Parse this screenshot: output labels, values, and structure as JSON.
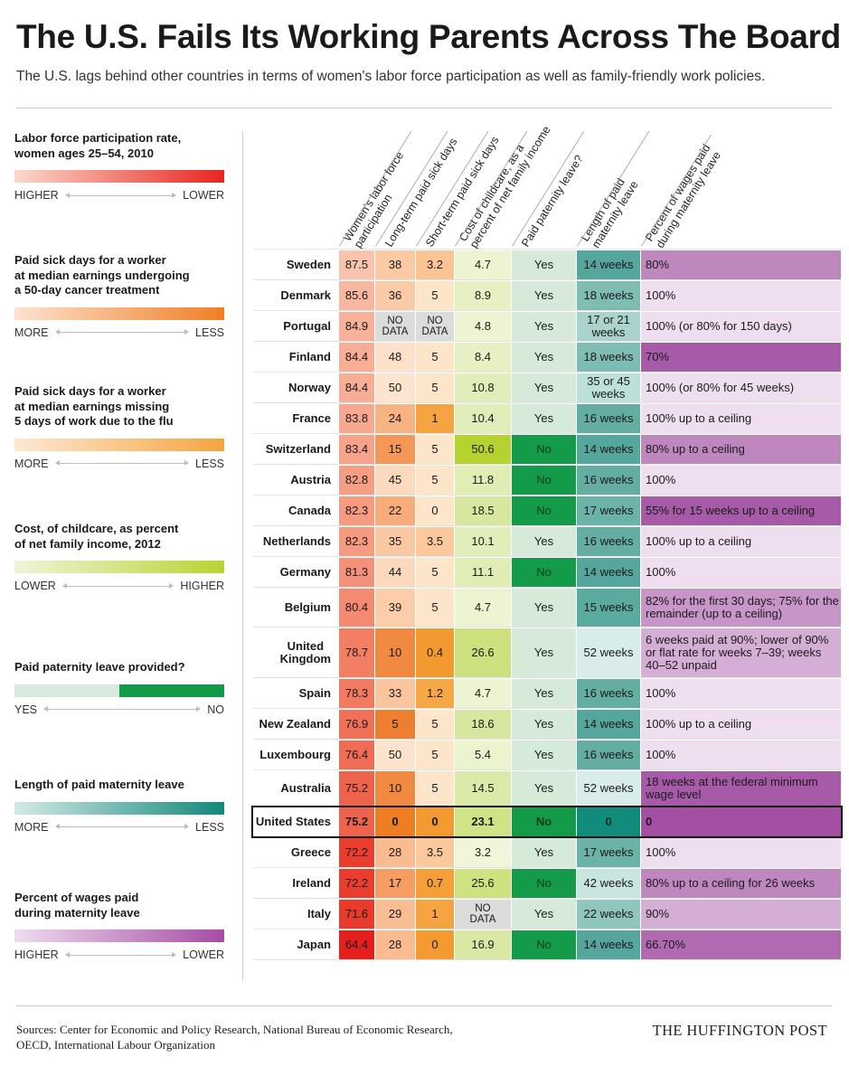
{
  "title": "The U.S. Fails Its Working Parents Across The Board",
  "subtitle": "The U.S. lags behind other countries in terms of women's labor force participation as well as family-friendly work policies.",
  "legends": [
    {
      "title": "Labor force participation rate,\nwomen ages 25–54, 2010",
      "left": "HIGHER",
      "right": "LOWER",
      "from": "#fbd9cc",
      "to": "#e8251f"
    },
    {
      "title": "Paid sick days for a worker\nat median earnings undergoing\na 50-day cancer treatment",
      "left": "MORE",
      "right": "LESS",
      "from": "#fde2cf",
      "to": "#f07f25"
    },
    {
      "title": "Paid sick days for a worker\nat median earnings missing\n5 days of work due to the flu",
      "left": "MORE",
      "right": "LESS",
      "from": "#fde9d3",
      "to": "#f4a540"
    },
    {
      "title": "Cost, of childcare, as percent\nof net family income, 2012",
      "left": "LOWER",
      "right": "HIGHER",
      "from": "#eef5d8",
      "to": "#b8d433"
    },
    {
      "title": "Paid paternity leave provided?",
      "left": "YES",
      "right": "NO",
      "from": "#d6ebdd",
      "to": "#119a48",
      "split": true
    },
    {
      "title": "Length of paid maternity leave",
      "left": "MORE",
      "right": "LESS",
      "from": "#d4e9e6",
      "to": "#11897b"
    },
    {
      "title": "Percent of wages paid\nduring maternity leave",
      "left": "HIGHER",
      "right": "LOWER",
      "from": "#eedcef",
      "to": "#a64ca5"
    }
  ],
  "chart_data": {
    "type": "table",
    "columns": [
      "Women's labor force participation",
      "Long-term paid sick days",
      "Short-term paid sick days",
      "Cost of childcare, as a percent of net family income",
      "Paid paternity leave?",
      "Length of paid maternity leave",
      "Percent of wages paid during maternity leave"
    ],
    "rows": [
      {
        "country": "Sweden",
        "lfp": "87.5",
        "lt": "38",
        "st": "3.2",
        "cc": "4.7",
        "pat": "Yes",
        "mat": "14 weeks",
        "wage": "80%",
        "colors": [
          "#f9c4ae",
          "#fbc9a3",
          "#fbc493",
          "#edf4d2",
          "#d5ead9",
          "#55a79d",
          "#be88bf"
        ]
      },
      {
        "country": "Denmark",
        "lfp": "85.6",
        "lt": "36",
        "st": "5",
        "cc": "8.9",
        "pat": "Yes",
        "mat": "18 weeks",
        "wage": "100%",
        "colors": [
          "#f8b7a0",
          "#fbcaa6",
          "#fce5c9",
          "#e6f0c3",
          "#d5ead9",
          "#7ebcb4",
          "#efdef0"
        ]
      },
      {
        "country": "Portugal",
        "lfp": "84.9",
        "lt": "NO DATA",
        "st": "NO DATA",
        "cc": "4.8",
        "pat": "Yes",
        "mat": "17 or 21 weeks",
        "wage": "100% (or 80% for 150 days)",
        "colors": [
          "#f8b29a",
          "#dcdcdc",
          "#dcdcdc",
          "#edf4d2",
          "#d5ead9",
          "#a9d3cc",
          "#efdef0"
        ]
      },
      {
        "country": "Finland",
        "lfp": "84.4",
        "lt": "48",
        "st": "5",
        "cc": "8.4",
        "pat": "Yes",
        "mat": "18 weeks",
        "wage": "70%",
        "colors": [
          "#f8ad95",
          "#fde1cb",
          "#fce5c9",
          "#e6f0c3",
          "#d5ead9",
          "#7ebcb4",
          "#a75aa8"
        ]
      },
      {
        "country": "Norway",
        "lfp": "84.4",
        "lt": "50",
        "st": "5",
        "cc": "10.8",
        "pat": "Yes",
        "mat": "35 or 45 weeks",
        "wage": "100% (or 80% for 45 weeks)",
        "colors": [
          "#f8ad95",
          "#fde4cf",
          "#fce5c9",
          "#e2eeba",
          "#d5ead9",
          "#bde0d9",
          "#efdef0"
        ]
      },
      {
        "country": "France",
        "lfp": "83.8",
        "lt": "24",
        "st": "1",
        "cc": "10.4",
        "pat": "Yes",
        "mat": "16 weeks",
        "wage": "100% up to a ceiling",
        "colors": [
          "#f7a88f",
          "#f8b383",
          "#f6a341",
          "#e2eeba",
          "#d5ead9",
          "#63ada3",
          "#efdef0"
        ]
      },
      {
        "country": "Switzerland",
        "lfp": "83.4",
        "lt": "15",
        "st": "5",
        "cc": "50.6",
        "pat": "No",
        "mat": "14 weeks",
        "wage": "80% up to a ceiling",
        "colors": [
          "#f7a38a",
          "#f49757",
          "#fce5c9",
          "#b6d22e",
          "#139b4a",
          "#55a79d",
          "#be88bf"
        ]
      },
      {
        "country": "Austria",
        "lfp": "82.8",
        "lt": "45",
        "st": "5",
        "cc": "11.8",
        "pat": "No",
        "mat": "16 weeks",
        "wage": "100%",
        "colors": [
          "#f69e85",
          "#fcdabf",
          "#fce5c9",
          "#e0edb5",
          "#139b4a",
          "#63ada3",
          "#efdef0"
        ]
      },
      {
        "country": "Canada",
        "lfp": "82.3",
        "lt": "22",
        "st": "0",
        "cc": "18.5",
        "pat": "No",
        "mat": "17 weeks",
        "wage": "55% for 15 weeks up to a ceiling",
        "colors": [
          "#f69a80",
          "#f7ac79",
          "#fce5c9",
          "#d7e89e",
          "#139b4a",
          "#6bb2a8",
          "#a75aa8"
        ]
      },
      {
        "country": "Netherlands",
        "lfp": "82.3",
        "lt": "35",
        "st": "3.5",
        "cc": "10.1",
        "pat": "Yes",
        "mat": "16 weeks",
        "wage": "100% up to a ceiling",
        "colors": [
          "#f69a80",
          "#fbc8a4",
          "#fbc99c",
          "#e2eeba",
          "#d5ead9",
          "#63ada3",
          "#efdef0"
        ]
      },
      {
        "country": "Germany",
        "lfp": "81.3",
        "lt": "44",
        "st": "5",
        "cc": "11.1",
        "pat": "No",
        "mat": "14 weeks",
        "wage": "100%",
        "colors": [
          "#f5917a",
          "#fcd8bd",
          "#fce5c9",
          "#e0edb5",
          "#139b4a",
          "#55a79d",
          "#efdef0"
        ]
      },
      {
        "country": "Belgium",
        "lfp": "80.4",
        "lt": "39",
        "st": "5",
        "cc": "4.7",
        "pat": "Yes",
        "mat": "15 weeks",
        "wage": "82% for the first 30 days; 75% for the remainder (up to a ceiling)",
        "colors": [
          "#f48a72",
          "#fbcea9",
          "#fce5c9",
          "#edf4d2",
          "#d5ead9",
          "#5aaaa0",
          "#c795c8"
        ]
      },
      {
        "country": "United Kingdom",
        "lfp": "78.7",
        "lt": "10",
        "st": "0.4",
        "cc": "26.6",
        "pat": "Yes",
        "mat": "52 weeks",
        "wage": "6 weeks paid at 90%; lower of 90% or flat rate for weeks 7–39; weeks 40–52 unpaid",
        "colors": [
          "#f27e64",
          "#f18a40",
          "#f29a2f",
          "#cde27e",
          "#d5ead9",
          "#d8ede9",
          "#d4aed5"
        ]
      },
      {
        "country": "Spain",
        "lfp": "78.3",
        "lt": "33",
        "st": "1.2",
        "cc": "4.7",
        "pat": "Yes",
        "mat": "16 weeks",
        "wage": "100%",
        "colors": [
          "#f27a61",
          "#fbc59f",
          "#f6a847",
          "#edf4d2",
          "#d5ead9",
          "#63ada3",
          "#efdef0"
        ]
      },
      {
        "country": "New Zealand",
        "lfp": "76.9",
        "lt": "5",
        "st": "5",
        "cc": "18.6",
        "pat": "Yes",
        "mat": "14 weeks",
        "wage": "100% up to a ceiling",
        "colors": [
          "#f17058",
          "#ef7f30",
          "#fce5c9",
          "#d7e89e",
          "#d5ead9",
          "#55a79d",
          "#efdef0"
        ]
      },
      {
        "country": "Luxembourg",
        "lfp": "76.4",
        "lt": "50",
        "st": "5",
        "cc": "5.4",
        "pat": "Yes",
        "mat": "16 weeks",
        "wage": "100%",
        "colors": [
          "#f06c54",
          "#fde4cf",
          "#fce5c9",
          "#ecf3cf",
          "#d5ead9",
          "#63ada3",
          "#efdef0"
        ]
      },
      {
        "country": "Australia",
        "lfp": "75.2",
        "lt": "10",
        "st": "5",
        "cc": "14.5",
        "pat": "Yes",
        "mat": "52 weeks",
        "wage": "18 weeks at the federal minimum wage level",
        "colors": [
          "#ef624b",
          "#f18a40",
          "#fce5c9",
          "#dbeaa8",
          "#d5ead9",
          "#d8ede9",
          "#a75aa8"
        ]
      },
      {
        "country": "United States",
        "lfp": "75.2",
        "lt": "0",
        "st": "0",
        "cc": "23.1",
        "pat": "No",
        "mat": "0",
        "wage": "0",
        "us": true,
        "colors": [
          "#ef624b",
          "#ef7d22",
          "#f39b30",
          "#d0e386",
          "#139b4a",
          "#118b7c",
          "#a44fa4"
        ]
      },
      {
        "country": "Greece",
        "lfp": "72.2",
        "lt": "28",
        "st": "3.5",
        "cc": "3.2",
        "pat": "Yes",
        "mat": "17 weeks",
        "wage": "100%",
        "colors": [
          "#ea3d2d",
          "#f9bb8f",
          "#fbc99c",
          "#f0f6da",
          "#d5ead9",
          "#6bb2a8",
          "#efdef0"
        ]
      },
      {
        "country": "Ireland",
        "lfp": "72.2",
        "lt": "17",
        "st": "0.7",
        "cc": "25.6",
        "pat": "No",
        "mat": "42 weeks",
        "wage": "80% up to a ceiling for 26 weeks",
        "colors": [
          "#ea3d2d",
          "#f59d62",
          "#f49f37",
          "#cee280",
          "#139b4a",
          "#c8e5e0",
          "#be88bf"
        ]
      },
      {
        "country": "Italy",
        "lfp": "71.6",
        "lt": "29",
        "st": "1",
        "cc": "NO DATA",
        "pat": "Yes",
        "mat": "22 weeks",
        "wage": "90%",
        "colors": [
          "#e93a2b",
          "#f9bd93",
          "#f6a341",
          "#dcdcdc",
          "#d5ead9",
          "#8fc6be",
          "#d4aed5"
        ]
      },
      {
        "country": "Japan",
        "lfp": "64.4",
        "lt": "28",
        "st": "0",
        "cc": "16.9",
        "pat": "No",
        "mat": "14 weeks",
        "wage": "66.70%",
        "colors": [
          "#e61f1c",
          "#f9bb8f",
          "#f39b30",
          "#d9e9a3",
          "#139b4a",
          "#55a79d",
          "#b06ab1"
        ]
      }
    ]
  },
  "sources": "Sources: Center for Economic and Policy Research, National Bureau of Economic Research,\nOECD,  International Labour Organization",
  "brand": "THE HUFFINGTON POST"
}
